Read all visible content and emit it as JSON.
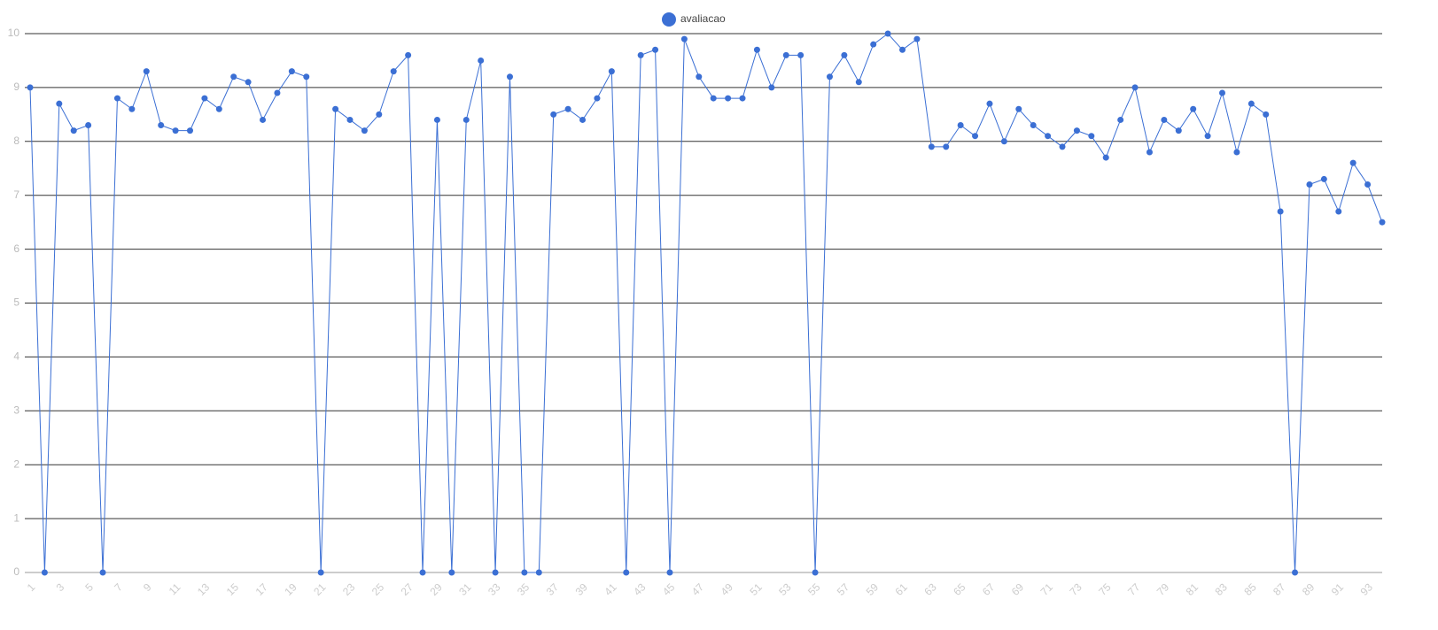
{
  "chart_data": {
    "type": "line",
    "x": [
      1,
      2,
      3,
      4,
      5,
      6,
      7,
      8,
      9,
      10,
      11,
      12,
      13,
      14,
      15,
      16,
      17,
      18,
      19,
      20,
      21,
      22,
      23,
      24,
      25,
      26,
      27,
      28,
      29,
      30,
      31,
      32,
      33,
      34,
      35,
      36,
      37,
      38,
      39,
      40,
      41,
      42,
      43,
      44,
      45,
      46,
      47,
      48,
      49,
      50,
      51,
      52,
      53,
      54,
      55,
      56,
      57,
      58,
      59,
      60,
      61,
      62,
      63,
      64,
      65,
      66,
      67,
      68,
      69,
      70,
      71,
      72,
      73,
      74,
      75,
      76,
      77,
      78,
      79,
      80,
      81,
      82,
      83,
      84,
      85,
      86,
      87,
      88,
      89,
      90,
      91,
      92,
      93,
      94
    ],
    "series": [
      {
        "name": "avaliacao",
        "color": "#3b6fd4",
        "values": [
          9.0,
          0,
          8.7,
          8.2,
          8.3,
          0,
          8.8,
          8.6,
          9.3,
          8.3,
          8.2,
          8.2,
          8.8,
          8.6,
          9.2,
          9.1,
          8.4,
          8.9,
          9.3,
          9.2,
          0,
          8.6,
          8.4,
          8.2,
          8.5,
          9.3,
          9.6,
          0,
          8.4,
          0,
          8.4,
          9.5,
          0,
          9.2,
          0,
          0,
          8.5,
          8.6,
          8.4,
          8.8,
          9.3,
          0,
          9.6,
          9.7,
          0,
          9.9,
          9.2,
          8.8,
          8.8,
          8.8,
          9.7,
          9.0,
          9.6,
          9.6,
          0,
          9.2,
          9.6,
          9.1,
          9.8,
          10.0,
          9.7,
          9.9,
          7.9,
          7.9,
          8.3,
          8.1,
          8.7,
          8.0,
          8.6,
          8.3,
          8.1,
          7.9,
          8.2,
          8.1,
          7.7,
          8.4,
          9.0,
          7.8,
          8.4,
          8.2,
          8.6,
          8.1,
          8.9,
          7.8,
          8.7,
          8.5,
          6.7,
          0,
          7.2,
          7.3,
          6.7,
          7.6,
          7.2,
          6.5
        ]
      }
    ],
    "xlim": [
      1,
      94
    ],
    "xticks": [
      1,
      3,
      5,
      7,
      9,
      11,
      13,
      15,
      17,
      19,
      21,
      23,
      25,
      27,
      29,
      31,
      33,
      35,
      37,
      39,
      41,
      43,
      45,
      47,
      49,
      51,
      53,
      55,
      57,
      59,
      61,
      63,
      65,
      67,
      69,
      71,
      73,
      75,
      77,
      79,
      81,
      83,
      85,
      87,
      89,
      91,
      93
    ],
    "ylim": [
      0,
      10
    ],
    "yticks": [
      0,
      1,
      2,
      3,
      4,
      5,
      6,
      7,
      8,
      9,
      10
    ],
    "grid": true,
    "legend": "top"
  }
}
